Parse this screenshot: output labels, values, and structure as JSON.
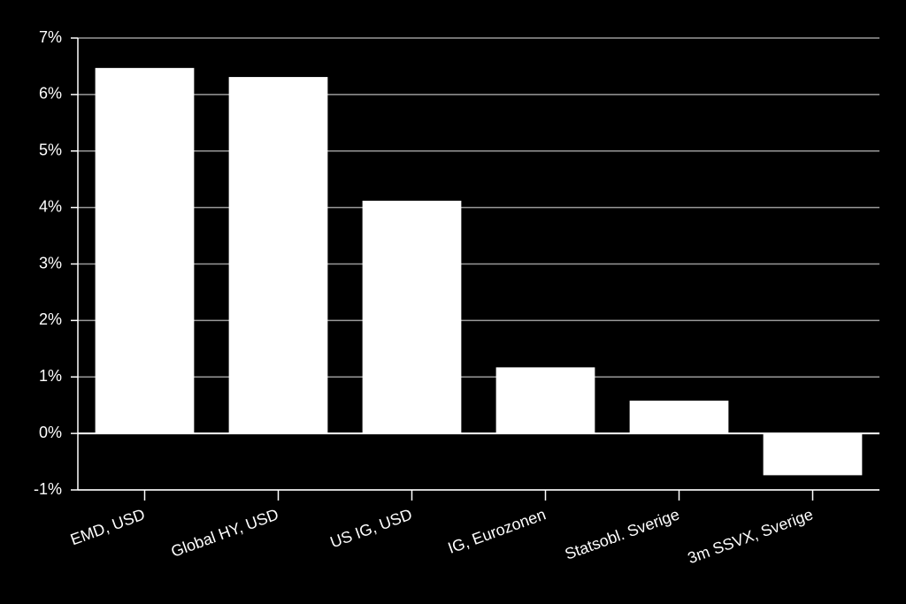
{
  "chart_data": {
    "type": "bar",
    "categories": [
      "EMD, USD",
      "Global HY, USD",
      "US IG, USD",
      "IG, Eurozonen",
      "Statsobl. Sverige",
      "3m SSVX, Sverige"
    ],
    "values": [
      6.47,
      6.31,
      4.12,
      1.17,
      0.58,
      -0.74
    ],
    "color": "#ffffff",
    "ylim": [
      -1,
      7
    ],
    "yticks": [
      {
        "value": -1,
        "label": "-1%"
      },
      {
        "value": 0,
        "label": "0%"
      },
      {
        "value": 1,
        "label": "1%"
      },
      {
        "value": 2,
        "label": "2%"
      },
      {
        "value": 3,
        "label": "3%"
      },
      {
        "value": 4,
        "label": "4%"
      },
      {
        "value": 5,
        "label": "5%"
      },
      {
        "value": 6,
        "label": "6%"
      },
      {
        "value": 7,
        "label": "7%"
      }
    ],
    "grid": true
  }
}
